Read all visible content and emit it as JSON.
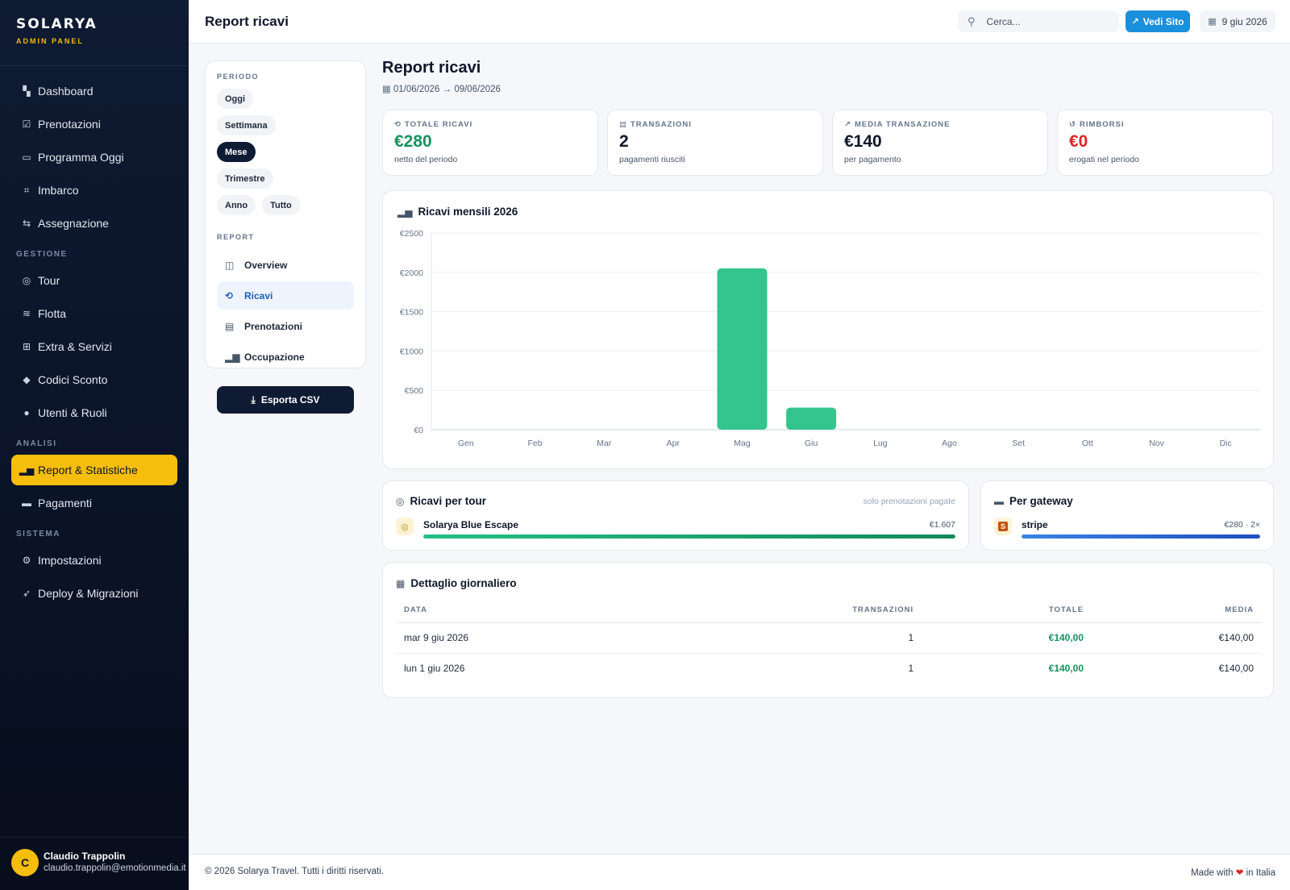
{
  "brand": {
    "logo": "SOLARYA",
    "subtitle": "ADMIN PANEL"
  },
  "sidebar": {
    "main": [
      {
        "label": "Dashboard",
        "icon": "dashboard-icon"
      },
      {
        "label": "Prenotazioni",
        "icon": "calendar-check-icon"
      },
      {
        "label": "Programma Oggi",
        "icon": "calendar-icon"
      },
      {
        "label": "Imbarco",
        "icon": "qr-code-icon"
      },
      {
        "label": "Assegnazione",
        "icon": "swap-icon"
      }
    ],
    "gestione_label": "GESTIONE",
    "gestione": [
      {
        "label": "Tour",
        "icon": "compass-icon"
      },
      {
        "label": "Flotta",
        "icon": "waves-icon"
      },
      {
        "label": "Extra & Servizi",
        "icon": "plus-box-icon"
      },
      {
        "label": "Codici Sconto",
        "icon": "tag-icon"
      },
      {
        "label": "Utenti & Ruoli",
        "icon": "users-icon"
      }
    ],
    "analisi_label": "ANALISI",
    "analisi": [
      {
        "label": "Report & Statistiche",
        "icon": "bar-chart-icon",
        "active": true
      },
      {
        "label": "Pagamenti",
        "icon": "credit-card-icon"
      }
    ],
    "sistema_label": "SISTEMA",
    "sistema": [
      {
        "label": "Impostazioni",
        "icon": "gear-icon"
      },
      {
        "label": "Deploy & Migrazioni",
        "icon": "rocket-icon"
      }
    ]
  },
  "user": {
    "initial": "C",
    "name": "Claudio Trappolin",
    "email": "claudio.trappolin@emotionmedia.it"
  },
  "topbar": {
    "title": "Report ricavi",
    "search_placeholder": "Cerca...",
    "site_button": "Vedi Sito",
    "date": "9 giu 2026"
  },
  "filters": {
    "period_label": "PERIODO",
    "periods": [
      {
        "label": "Oggi",
        "active": false
      },
      {
        "label": "Settimana",
        "active": false
      },
      {
        "label": "Mese",
        "active": true
      },
      {
        "label": "Trimestre",
        "active": false
      },
      {
        "label": "Anno",
        "active": false
      },
      {
        "label": "Tutto",
        "active": false
      }
    ],
    "report_label": "REPORT",
    "reports": [
      {
        "label": "Overview",
        "icon": "layout-icon",
        "active": false
      },
      {
        "label": "Ricavi",
        "icon": "revenue-icon",
        "active": true
      },
      {
        "label": "Prenotazioni",
        "icon": "list-icon",
        "active": false
      },
      {
        "label": "Occupazione",
        "icon": "bar-chart-icon",
        "active": false
      }
    ],
    "export_button": "Esporta CSV"
  },
  "main": {
    "title": "Report ricavi",
    "range": "01/06/2026 → 09/06/2026"
  },
  "kpis": [
    {
      "label": "TOTALE RICAVI",
      "value": "€280",
      "sub": "netto del periodo",
      "tone": "green",
      "icon": "revenue-icon"
    },
    {
      "label": "TRANSAZIONI",
      "value": "2",
      "sub": "pagamenti riusciti",
      "tone": "dark",
      "icon": "list-icon"
    },
    {
      "label": "MEDIA TRANSAZIONE",
      "value": "€140",
      "sub": "per pagamento",
      "tone": "dark",
      "icon": "trend-icon"
    },
    {
      "label": "RIMBORSI",
      "value": "€0",
      "sub": "erogati nel periodo",
      "tone": "red",
      "icon": "refund-icon"
    }
  ],
  "chart_data": {
    "type": "bar",
    "title": "Ricavi mensili 2026",
    "categories": [
      "Gen",
      "Feb",
      "Mar",
      "Apr",
      "Mag",
      "Giu",
      "Lug",
      "Ago",
      "Set",
      "Ott",
      "Nov",
      "Dic"
    ],
    "values": [
      0,
      0,
      0,
      0,
      2050,
      280,
      0,
      0,
      0,
      0,
      0,
      0
    ],
    "ylim": [
      0,
      2500
    ],
    "yticks": [
      0,
      500,
      1000,
      1500,
      2000,
      2500
    ],
    "ytick_labels": [
      "€0",
      "€500",
      "€1000",
      "€1500",
      "€2000",
      "€2500"
    ],
    "grid": true,
    "bar_color": "#34c58e"
  },
  "tours": {
    "title": "Ricavi per tour",
    "note": "solo prenotazioni pagate",
    "items": [
      {
        "name": "Solarya Blue Escape",
        "value": "€1.607",
        "share": 1.0
      }
    ]
  },
  "gateways": {
    "title": "Per gateway",
    "items": [
      {
        "name": "stripe",
        "value": "€280 · 2×",
        "share": 1.0
      }
    ]
  },
  "daily": {
    "title": "Dettaglio giornaliero",
    "columns": [
      "DATA",
      "TRANSAZIONI",
      "TOTALE",
      "MEDIA"
    ],
    "rows": [
      {
        "date": "mar 9 giu 2026",
        "transactions": "1",
        "total": "€140,00",
        "avg": "€140,00"
      },
      {
        "date": "lun 1 giu 2026",
        "transactions": "1",
        "total": "€140,00",
        "avg": "€140,00"
      }
    ]
  },
  "footer": {
    "copyright": "© 2026 Solarya Travel. Tutti i diritti riservati.",
    "made_with": "Made with",
    "in_italy": "in Italia"
  }
}
